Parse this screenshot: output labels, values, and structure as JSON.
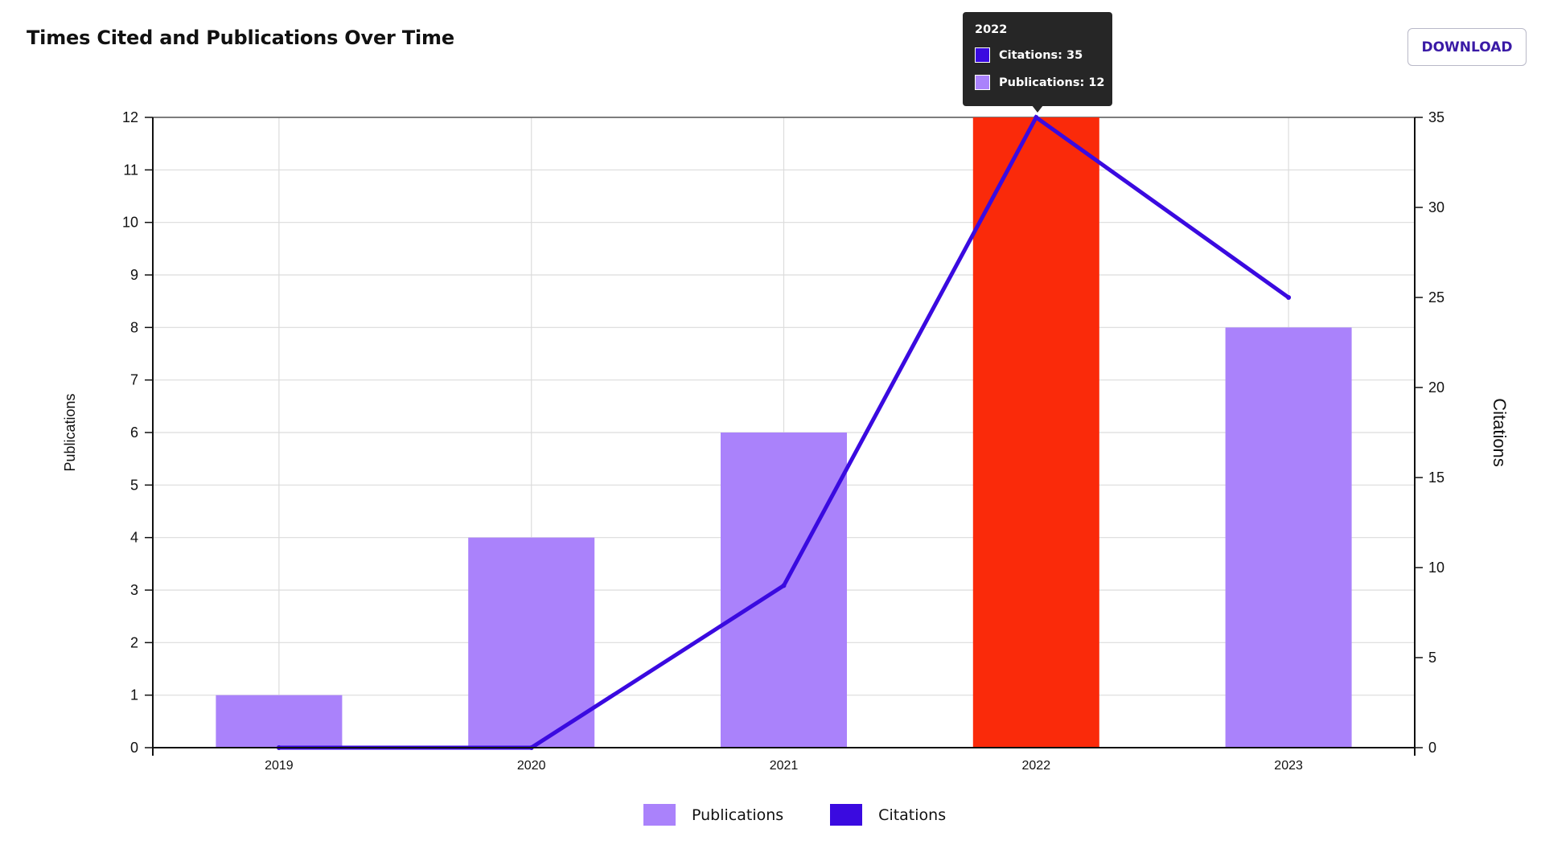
{
  "header": {
    "title": "Times Cited and Publications Over Time",
    "download_label": "DOWNLOAD"
  },
  "colors": {
    "publications": "#aa82fb",
    "citations": "#3a0ae0",
    "highlight": "#fa2a0a",
    "grid": "#dcdcdc",
    "axis": "#111111"
  },
  "tooltip": {
    "year": "2022",
    "citations_text": "Citations: 35",
    "publications_text": "Publications: 12"
  },
  "legend": {
    "publications": "Publications",
    "citations": "Citations"
  },
  "chart_data": {
    "type": "bar",
    "title": "Times Cited and Publications Over Time",
    "categories": [
      "2019",
      "2020",
      "2021",
      "2022",
      "2023"
    ],
    "highlighted_category": "2022",
    "y_left": {
      "label": "Publications",
      "range": [
        0,
        12
      ],
      "ticks": [
        0,
        1,
        2,
        3,
        4,
        5,
        6,
        7,
        8,
        9,
        10,
        11,
        12
      ]
    },
    "y_right": {
      "label": "Citations",
      "range": [
        0,
        35
      ],
      "ticks": [
        0,
        5,
        10,
        15,
        20,
        25,
        30,
        35
      ]
    },
    "series": [
      {
        "name": "Publications",
        "type": "bar",
        "axis": "left",
        "values": [
          1,
          4,
          6,
          12,
          8
        ]
      },
      {
        "name": "Citations",
        "type": "line",
        "axis": "right",
        "values": [
          0,
          0,
          9,
          35,
          25
        ]
      }
    ],
    "grid": true,
    "legend_position": "bottom"
  }
}
